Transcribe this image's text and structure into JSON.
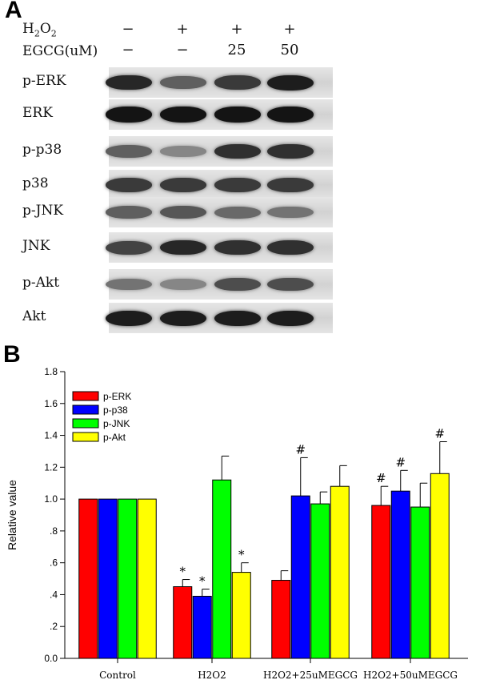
{
  "panel_a": {
    "letter": "A",
    "conditions": [
      {
        "label": "H2O2",
        "label_main": "H",
        "label_sub1": "2",
        "label_mid": "O",
        "label_sub2": "2",
        "cells": [
          "−",
          "+",
          "+",
          "+"
        ]
      },
      {
        "label": "EGCG(uM)",
        "cells": [
          "−",
          "−",
          "25",
          "50"
        ]
      }
    ],
    "blots": [
      {
        "label": "p-ERK",
        "intensity": [
          0.85,
          0.55,
          0.75,
          0.9
        ]
      },
      {
        "label": "ERK",
        "intensity": [
          0.95,
          0.95,
          0.95,
          0.95
        ]
      },
      {
        "label": "p-p38",
        "intensity": [
          0.55,
          0.35,
          0.8,
          0.8
        ]
      },
      {
        "label": "p38",
        "intensity": [
          0.75,
          0.75,
          0.75,
          0.75
        ]
      },
      {
        "label": "p-JNK",
        "intensity": [
          0.55,
          0.6,
          0.5,
          0.45
        ]
      },
      {
        "label": "JNK",
        "intensity": [
          0.7,
          0.85,
          0.8,
          0.8
        ]
      },
      {
        "label": "p-Akt",
        "intensity": [
          0.45,
          0.35,
          0.65,
          0.65
        ]
      },
      {
        "label": "Akt",
        "intensity": [
          0.9,
          0.9,
          0.9,
          0.9
        ]
      }
    ]
  },
  "panel_b": {
    "letter": "B"
  },
  "chart_data": {
    "type": "bar",
    "ylabel": "Relative value",
    "ylim": [
      0,
      1.8
    ],
    "yticks": [
      {
        "value": 0.0,
        "label": "0.0"
      },
      {
        "value": 0.2,
        "label": ".2"
      },
      {
        "value": 0.4,
        "label": ".4"
      },
      {
        "value": 0.6,
        "label": ".6"
      },
      {
        "value": 0.8,
        "label": ".8"
      },
      {
        "value": 1.0,
        "label": "1.0"
      },
      {
        "value": 1.2,
        "label": "1.2"
      },
      {
        "value": 1.4,
        "label": "1.4"
      },
      {
        "value": 1.6,
        "label": "1.6"
      },
      {
        "value": 1.8,
        "label": "1.8"
      }
    ],
    "categories": [
      "Control",
      "H2O2",
      "H2O2+25uMEGCG",
      "H2O2+50uMEGCG"
    ],
    "legend_position": "top-left",
    "series": [
      {
        "name": "p-ERK",
        "color": "#ff0000",
        "values": [
          1.0,
          0.45,
          0.49,
          0.96
        ],
        "errors": [
          0,
          0.045,
          0.06,
          0.12
        ],
        "marks": [
          "",
          "*",
          "",
          "#"
        ]
      },
      {
        "name": "p-p38",
        "color": "#0000ff",
        "values": [
          1.0,
          0.39,
          1.02,
          1.05
        ],
        "errors": [
          0,
          0.045,
          0.24,
          0.13
        ],
        "marks": [
          "",
          "*",
          "#",
          "#"
        ]
      },
      {
        "name": "p-JNK",
        "color": "#00ff00",
        "values": [
          1.0,
          1.12,
          0.97,
          0.95
        ],
        "errors": [
          0,
          0.15,
          0.075,
          0.15
        ],
        "marks": [
          "",
          "",
          "",
          ""
        ]
      },
      {
        "name": "p-Akt",
        "color": "#ffff00",
        "values": [
          1.0,
          0.54,
          1.08,
          1.16
        ],
        "errors": [
          0,
          0.06,
          0.13,
          0.2
        ],
        "marks": [
          "",
          "*",
          "",
          "#"
        ]
      }
    ]
  }
}
